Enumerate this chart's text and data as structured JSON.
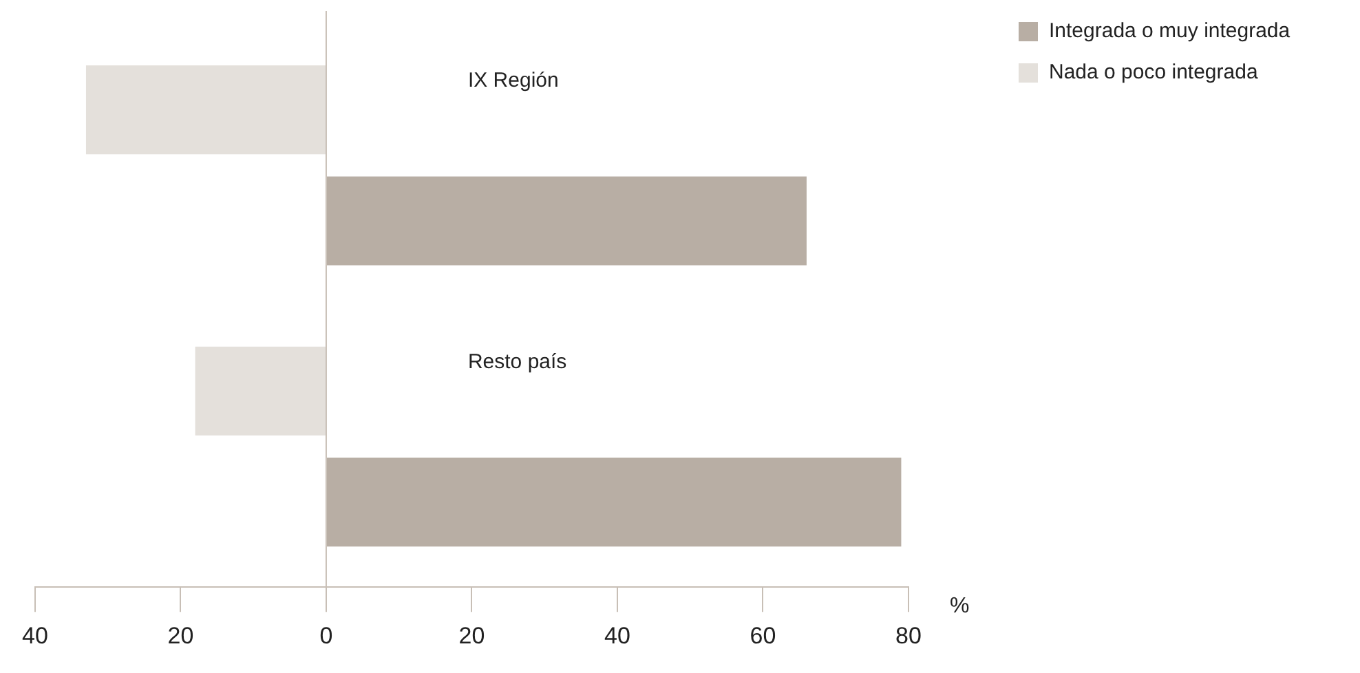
{
  "chart_data": {
    "type": "bar",
    "orientation": "horizontal",
    "categories": [
      "IX Región",
      "Resto país"
    ],
    "series": [
      {
        "name": "Integrada o muy integrada",
        "color": "#b8aea4",
        "values": [
          66,
          79
        ]
      },
      {
        "name": "Nada o poco integrada",
        "color": "#e4e0db",
        "values": [
          -33,
          -18
        ]
      }
    ],
    "xlim": [
      -40,
      80
    ],
    "xticks": [
      {
        "value": -40,
        "label": "40"
      },
      {
        "value": -20,
        "label": "20"
      },
      0,
      20,
      40,
      60,
      80
    ],
    "xlabel": "%",
    "legend": "top right"
  }
}
